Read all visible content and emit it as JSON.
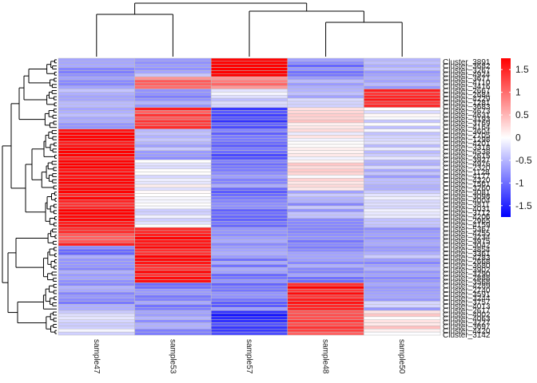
{
  "chart_data": {
    "type": "heatmap",
    "title": "",
    "xlabel": "",
    "ylabel": "",
    "columns": [
      "sample47",
      "sample53",
      "sample57",
      "sample48",
      "sample50"
    ],
    "color_scale": {
      "low": "#0000ff",
      "mid": "#ffffff",
      "high": "#ff0000",
      "range": [
        -1.75,
        1.75
      ],
      "ticks": [
        1.5,
        1,
        0.5,
        0,
        -0.5,
        -1,
        -1.5
      ],
      "tick_labels": [
        "1.5",
        "1",
        "0.5",
        "0",
        "-0.5",
        "-1",
        "-1.5"
      ],
      "legend_position": "right"
    },
    "grid_color": "#bebebe",
    "cluster_columns": true,
    "cluster_rows": true,
    "column_dendrogram": [
      [
        0,
        1
      ],
      [
        3,
        4
      ],
      [
        2,
        5
      ],
      [
        -1,
        6
      ]
    ],
    "row_labels_visible": [
      "Cluster_3891",
      "Cluster_3682",
      "Cluster_3267",
      "Cluster_4924",
      "Cluster_3671",
      "Cluster_4710",
      "Cluster_3416",
      "Cluster_2667",
      "Cluster_2684",
      "Cluster_4229",
      "Cluster_1281",
      "Cluster_3683",
      "Cluster_4673",
      "Cluster_4631",
      "Cluster_3193",
      "Cluster_3769",
      "Cluster_4164",
      "Cluster_3604",
      "Cluster_2705",
      "Cluster_1298",
      "Cluster_4201",
      "Cluster_3318",
      "Cluster_4538",
      "Cluster_2615",
      "Cluster_3927",
      "Cluster_4976",
      "Cluster_2320",
      "Cluster_1128",
      "Cluster_4177",
      "Cluster_4320",
      "Cluster_1561",
      "Cluster_3260",
      "Cluster_3081",
      "Cluster_3098",
      "Cluster_4004",
      "Cluster_3811",
      "Cluster_4031",
      "Cluster_3712",
      "Cluster_4206",
      "Cluster_2965",
      "Cluster_4159",
      "Cluster_5367",
      "Cluster_4255",
      "Cluster_3234",
      "Cluster_3975",
      "Cluster_3042",
      "Cluster_3854",
      "Cluster_3361",
      "Cluster_4283",
      "Cluster_2668",
      "Cluster_3680",
      "Cluster_3902",
      "Cluster_3290",
      "Cluster_2888",
      "Cluster_3568",
      "Cluster_4289",
      "Cluster_2740",
      "Cluster_3591",
      "Cluster_3244",
      "Cluster_3757",
      "Cluster_4013",
      "Cluster_2617",
      "Cluster_4002",
      "Cluster_4063",
      "Cluster_3227",
      "Cluster_3697",
      "Cluster_4420",
      "Cluster_3142"
    ],
    "row_blocks": [
      {
        "rows": 6,
        "values": [
          -0.7,
          -0.6,
          1.7,
          -0.9,
          -0.6
        ]
      },
      {
        "rows": 4,
        "values": [
          -0.8,
          0.9,
          0.9,
          -0.6,
          -0.5
        ]
      },
      {
        "rows": 6,
        "values": [
          -0.5,
          -0.7,
          -0.3,
          -0.4,
          1.6
        ]
      },
      {
        "rows": 7,
        "values": [
          -0.6,
          1.3,
          -1.2,
          0.2,
          -0.2
        ]
      },
      {
        "rows": 10,
        "values": [
          1.7,
          -0.6,
          -1.0,
          0.1,
          -0.3
        ]
      },
      {
        "rows": 10,
        "values": [
          1.7,
          -0.1,
          -0.8,
          0.2,
          -0.5
        ]
      },
      {
        "rows": 12,
        "values": [
          1.6,
          -0.2,
          -0.9,
          -0.6,
          -0.3
        ]
      },
      {
        "rows": 6,
        "values": [
          1.3,
          1.5,
          -0.8,
          -0.9,
          -0.6
        ]
      },
      {
        "rows": 12,
        "values": [
          -0.8,
          1.6,
          -0.8,
          -0.8,
          -0.6
        ]
      },
      {
        "rows": 9,
        "values": [
          -0.7,
          -0.8,
          -0.9,
          1.6,
          -0.5
        ]
      },
      {
        "rows": 8,
        "values": [
          -0.3,
          -0.7,
          -1.4,
          1.2,
          0.2
        ]
      }
    ]
  }
}
